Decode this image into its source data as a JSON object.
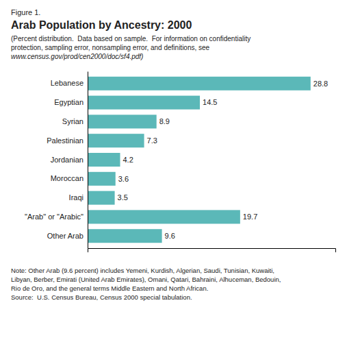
{
  "chart_data": {
    "type": "bar",
    "orientation": "horizontal",
    "title": "Arab Population by Ancestry: 2000",
    "subtitle": "(Percent distribution.  Data based on sample.  For information on confidentiality\nprotection, sampling error, nonsampling error, and definitions, see\nwww.census.gov/prod/cen2000/doc/sf4.pdf)",
    "annotations": [
      "Figure 1.",
      "Note: Other Arab (9.6 percent) includes Yemeni, Kurdish, Algerian, Saudi, Tunisian, Kuwaiti,\nLibyan, Berber, Emirati (United Arab Emirates), Omani, Qatari, Bahraini, Alhuceman, Bedouin,\nRio de Oro, and the general terms Middle Eastern and North African.\nSource:  U.S. Census Bureau, Census 2000 special tabulation."
    ],
    "categories": [
      "Lebanese",
      "Egyptian",
      "Syrian",
      "Palestinian",
      "Jordanian",
      "Moroccan",
      "Iraqi",
      "\"Arab\" or \"Arabic\"",
      "Other Arab"
    ],
    "values": [
      28.8,
      14.5,
      8.9,
      7.3,
      4.2,
      3.6,
      3.5,
      19.7,
      9.6
    ],
    "color": "#5bb8b8",
    "xlim": [
      0,
      32
    ],
    "grid": false,
    "data_labels": true,
    "tick_labels": "y"
  }
}
